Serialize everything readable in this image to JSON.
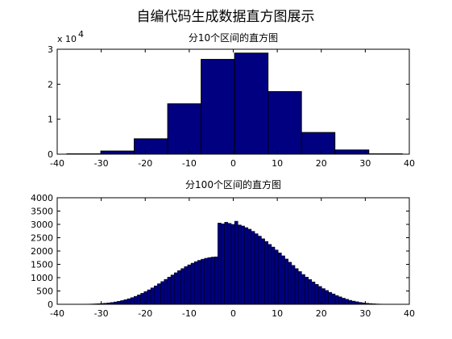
{
  "figure": {
    "title": "自编代码生成数据直方图展示"
  },
  "chart_data": [
    {
      "type": "bar",
      "title": "分10个区间的直方图",
      "xlabel": "",
      "ylabel": "",
      "xlim": [
        -40,
        40
      ],
      "ylim": [
        0,
        3
      ],
      "y_exponent_label": "x 10",
      "y_exponent": "4",
      "x_ticks": [
        -40,
        -30,
        -20,
        -10,
        0,
        10,
        20,
        30,
        40
      ],
      "y_ticks": [
        0,
        1,
        2,
        3
      ],
      "bin_edges": [
        -37.8,
        -30.1,
        -22.5,
        -14.9,
        -7.3,
        0.3,
        7.9,
        15.5,
        23.1,
        30.8,
        38.4
      ],
      "values": [
        0.01,
        0.09,
        0.44,
        1.44,
        2.71,
        2.89,
        1.79,
        0.62,
        0.12,
        0.01
      ],
      "bar_color": "#000080",
      "edge_color": "#000000",
      "grid": false
    },
    {
      "type": "bar",
      "title": "分100个区间的直方图",
      "xlabel": "",
      "ylabel": "",
      "xlim": [
        -40,
        40
      ],
      "ylim": [
        0,
        4000
      ],
      "x_ticks": [
        -40,
        -30,
        -20,
        -10,
        0,
        10,
        20,
        30,
        40
      ],
      "y_ticks": [
        0,
        500,
        1000,
        1500,
        2000,
        2500,
        3000,
        3500,
        4000
      ],
      "bin_range": [
        -37.8,
        38.4
      ],
      "values": [
        1,
        1,
        2,
        3,
        4,
        6,
        9,
        12,
        17,
        23,
        31,
        41,
        54,
        69,
        89,
        112,
        140,
        172,
        209,
        252,
        300,
        354,
        413,
        476,
        544,
        617,
        693,
        772,
        853,
        936,
        1019,
        1102,
        1184,
        1264,
        1341,
        1414,
        1482,
        1545,
        1602,
        1651,
        1694,
        1728,
        1755,
        1773,
        1783,
        3050,
        3020,
        3080,
        3040,
        3000,
        3120,
        2980,
        2940,
        2880,
        2820,
        2740,
        2650,
        2560,
        2460,
        2360,
        2250,
        2150,
        2040,
        1930,
        1820,
        1700,
        1580,
        1460,
        1340,
        1230,
        1120,
        1020,
        930,
        840,
        750,
        670,
        590,
        520,
        450,
        390,
        330,
        280,
        230,
        190,
        150,
        120,
        95,
        72,
        54,
        40,
        29,
        20,
        14,
        9,
        6,
        4,
        3,
        2,
        1,
        1
      ],
      "bar_color": "#000080",
      "edge_color": "#000000",
      "grid": false
    }
  ]
}
